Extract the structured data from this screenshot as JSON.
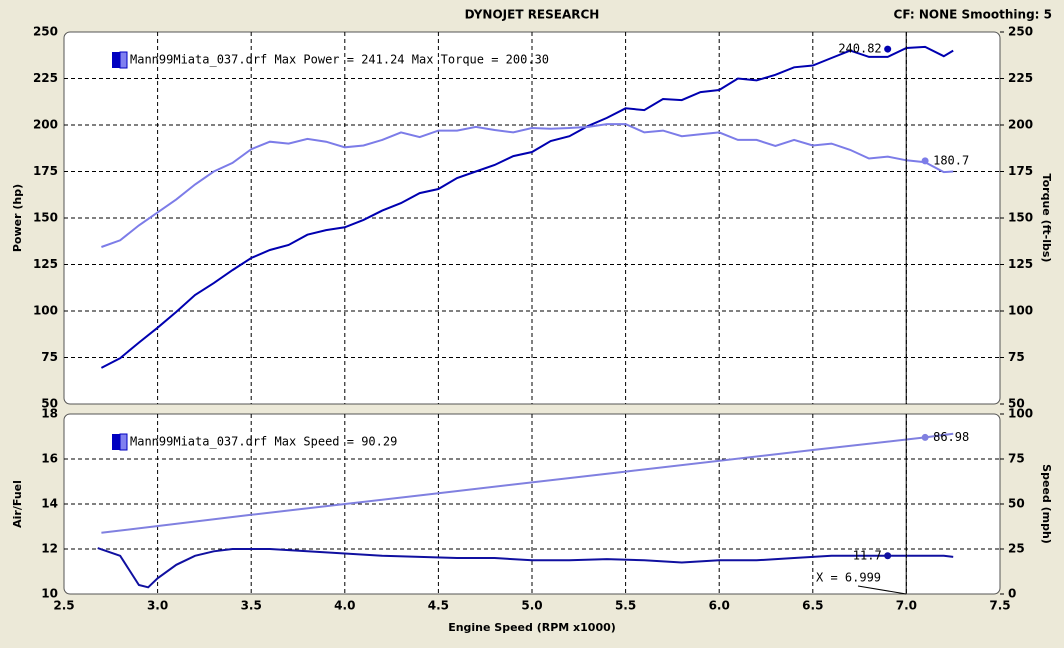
{
  "header": {
    "title": "DYNOJET RESEARCH",
    "settings": "CF: NONE  Smoothing: 5"
  },
  "chart_data": [
    {
      "type": "line",
      "legend_text": "Mann99Miata_037.drf Max Power = 241.24 Max Torque = 200.30",
      "ylabel": "Power (hp)",
      "y2label": "Torque (ft-lbs)",
      "xlim": [
        2.5,
        7.5
      ],
      "xticks": [
        2.5,
        3,
        3.5,
        4,
        4.5,
        5,
        5.5,
        6,
        6.5,
        7,
        7.5
      ],
      "ylim": [
        50,
        250
      ],
      "yticks": [
        50,
        75,
        100,
        125,
        150,
        175,
        200,
        225,
        250
      ],
      "y2lim": [
        50,
        250
      ],
      "y2ticks": [
        50,
        75,
        100,
        125,
        150,
        175,
        200,
        225,
        250
      ],
      "grid": true,
      "cursor": {
        "x": 6.999
      },
      "series": [
        {
          "color": "#0000b0",
          "x": [
            2.7,
            2.8,
            2.9,
            3.0,
            3.1,
            3.2,
            3.3,
            3.4,
            3.5,
            3.6,
            3.7,
            3.8,
            3.9,
            4.0,
            4.1,
            4.2,
            4.3,
            4.4,
            4.5,
            4.6,
            4.7,
            4.8,
            4.9,
            5.0,
            5.1,
            5.2,
            5.3,
            5.4,
            5.5,
            5.6,
            5.7,
            5.8,
            5.9,
            6.0,
            6.1,
            6.2,
            6.3,
            6.4,
            6.5,
            6.6,
            6.7,
            6.8,
            6.9,
            7.0,
            7.1,
            7.2,
            7.25
          ],
          "values": [
            69.4,
            74.7,
            83,
            91,
            99.5,
            108.6,
            115,
            122,
            128.5,
            132.8,
            135.5,
            141,
            143.5,
            145,
            149,
            154,
            158,
            163.4,
            165.6,
            171.5,
            175,
            178.5,
            183.3,
            185.5,
            191.4,
            194,
            199.5,
            203.8,
            209,
            208,
            214,
            213.4,
            217.7,
            218.8,
            225,
            224,
            227,
            231,
            232,
            236,
            240,
            236.6,
            236.6,
            241.4,
            242,
            237,
            240
          ],
          "readout": {
            "x": 6.9,
            "value": 240.82
          }
        },
        {
          "color": "#7c7ce8",
          "axis": "y2",
          "x": [
            2.7,
            2.8,
            2.9,
            3.0,
            3.1,
            3.2,
            3.3,
            3.4,
            3.5,
            3.6,
            3.7,
            3.8,
            3.9,
            4.0,
            4.1,
            4.2,
            4.3,
            4.4,
            4.5,
            4.6,
            4.7,
            4.8,
            4.9,
            5.0,
            5.1,
            5.2,
            5.3,
            5.4,
            5.5,
            5.6,
            5.7,
            5.8,
            5.9,
            6.0,
            6.1,
            6.2,
            6.3,
            6.4,
            6.5,
            6.6,
            6.7,
            6.8,
            6.9,
            7.0,
            7.1,
            7.2,
            7.25
          ],
          "values": [
            134.4,
            138,
            146,
            153,
            160,
            168,
            175,
            179.6,
            187,
            191,
            190,
            192.5,
            191,
            188,
            189,
            192,
            196,
            193.5,
            197,
            197,
            199,
            197.3,
            196,
            198.4,
            198,
            198.4,
            199,
            200.5,
            200.5,
            196,
            197,
            194,
            195,
            196,
            192,
            192,
            188.7,
            192,
            189,
            190,
            186.6,
            182,
            183,
            181,
            180,
            174.7,
            175
          ],
          "readout": {
            "x": 7.1,
            "value": 180.7
          }
        }
      ]
    },
    {
      "type": "line",
      "legend_text": "Mann99Miata_037.drf Max Speed = 90.29",
      "ylabel": "Air/Fuel",
      "y2label": "Speed (mph)",
      "xlabel": "Engine Speed (RPM x1000)",
      "xlim": [
        2.5,
        7.5
      ],
      "xticks": [
        2.5,
        {
          "value": 3,
          "label": "3.0"
        },
        3.5,
        {
          "value": 4,
          "label": "4.0"
        },
        4.5,
        {
          "value": 5,
          "label": "5.0"
        },
        5.5,
        {
          "value": 6,
          "label": "6.0"
        },
        6.5,
        {
          "value": 7,
          "label": "7.0"
        },
        7.5
      ],
      "ylim": [
        10,
        18
      ],
      "yticks": [
        10,
        12,
        14,
        16,
        18
      ],
      "y2lim": [
        0,
        100
      ],
      "y2ticks": [
        0,
        25,
        50,
        75,
        100
      ],
      "grid": true,
      "cursor": {
        "x": 6.999,
        "label": "X = 6.999"
      },
      "series": [
        {
          "color": "#1010a0",
          "x": [
            2.68,
            2.8,
            2.9,
            2.95,
            3.0,
            3.1,
            3.2,
            3.3,
            3.4,
            3.6,
            3.8,
            4.0,
            4.2,
            4.4,
            4.6,
            4.8,
            5.0,
            5.2,
            5.4,
            5.6,
            5.8,
            6.0,
            6.2,
            6.4,
            6.6,
            6.8,
            7.0,
            7.2,
            7.25
          ],
          "values": [
            12.04,
            11.7,
            10.4,
            10.3,
            10.7,
            11.3,
            11.7,
            11.9,
            12,
            12,
            11.9,
            11.8,
            11.7,
            11.65,
            11.6,
            11.6,
            11.5,
            11.5,
            11.55,
            11.5,
            11.4,
            11.5,
            11.5,
            11.6,
            11.7,
            11.7,
            11.7,
            11.7,
            11.65
          ],
          "readout": {
            "x": 6.9,
            "value": 11.7
          }
        },
        {
          "color": "#8080e0",
          "axis": "y2",
          "x": [
            2.7,
            3.5,
            4.5,
            5.5,
            6.5,
            7.1,
            7.25
          ],
          "values": [
            34,
            44,
            56,
            68,
            80,
            87,
            89
          ],
          "readout": {
            "x": 7.1,
            "value": 86.98
          }
        }
      ]
    }
  ]
}
